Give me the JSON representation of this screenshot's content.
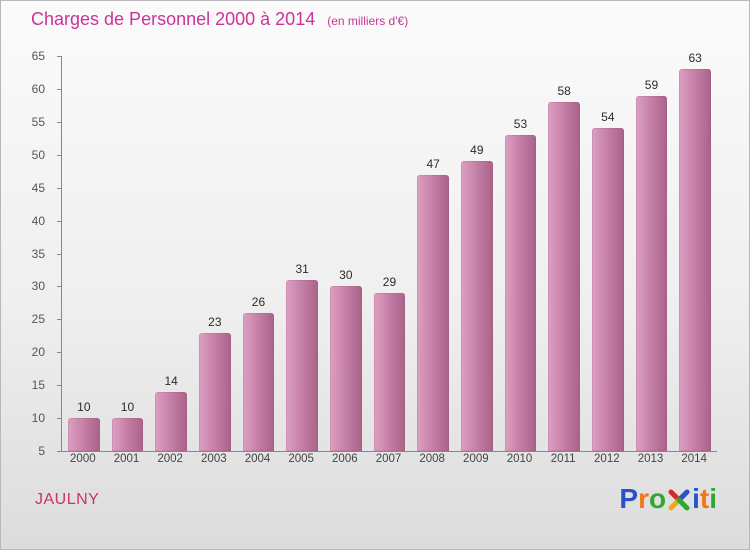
{
  "header": {
    "title": "Charges de Personnel 2000 à 2014",
    "subtitle": "(en milliers d'€)"
  },
  "footer": {
    "commune": "JAULNY"
  },
  "logo": {
    "name": "Proxiti",
    "letters": [
      {
        "ch": "P",
        "color": "#2b50c8"
      },
      {
        "ch": "r",
        "color": "#f07818"
      },
      {
        "ch": "o",
        "color": "#2ea82e"
      },
      {
        "ch": "x",
        "color": "#d42a2a",
        "icon": true,
        "arm_colors": [
          "#d42a2a",
          "#2b50c8",
          "#f0a818",
          "#2ea82e"
        ]
      },
      {
        "ch": "i",
        "color": "#2b50c8"
      },
      {
        "ch": "t",
        "color": "#f07818"
      },
      {
        "ch": "i",
        "color": "#2ea82e"
      }
    ]
  },
  "theme": {
    "accent": "#cc3399",
    "commune_color": "#cc3366",
    "bar_light": "#dda0c2",
    "bar_mid": "#c27ba3",
    "bar_dark": "#a96288",
    "axis_color": "#888888"
  },
  "chart_data": {
    "type": "bar",
    "title": "Charges de Personnel 2000 à 2014",
    "subtitle": "(en milliers d'€)",
    "xlabel": "",
    "ylabel": "",
    "categories": [
      "2000",
      "2001",
      "2002",
      "2003",
      "2004",
      "2005",
      "2006",
      "2007",
      "2008",
      "2009",
      "2010",
      "2011",
      "2012",
      "2013",
      "2014"
    ],
    "values": [
      10,
      10,
      14,
      23,
      26,
      31,
      30,
      29,
      47,
      49,
      53,
      58,
      54,
      59,
      63
    ],
    "ylim": [
      5,
      65
    ],
    "ytick_step": 5,
    "grid": false,
    "legend": false,
    "value_labels": true
  }
}
